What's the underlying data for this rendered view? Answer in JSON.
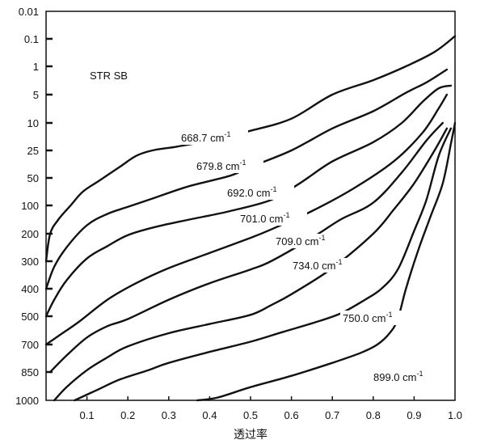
{
  "chart_data": {
    "type": "line",
    "annotation": "STR SB",
    "xlabel": "透过率",
    "ylabel": "",
    "xlim": [
      0,
      1.0
    ],
    "x_ticks": [
      "0.1",
      "0.2",
      "0.3",
      "0.4",
      "0.5",
      "0.6",
      "0.7",
      "0.8",
      "0.9",
      "1.0"
    ],
    "y_ticks": [
      "0.01",
      "0.1",
      "1",
      "5",
      "10",
      "25",
      "50",
      "100",
      "200",
      "300",
      "400",
      "500",
      "700",
      "850",
      "1000"
    ],
    "y_scale": "ordinal-tick",
    "grid": false,
    "legend": "none",
    "series": [
      {
        "label_value": "668.7",
        "label_unit": "cm",
        "label_exp": "-1",
        "points": [
          [
            0.0,
            300
          ],
          [
            0.01,
            200
          ],
          [
            0.03,
            150
          ],
          [
            0.06,
            100
          ],
          [
            0.09,
            75
          ],
          [
            0.13,
            55
          ],
          [
            0.18,
            40
          ],
          [
            0.22,
            30
          ],
          [
            0.26,
            25
          ],
          [
            0.32,
            22
          ],
          [
            0.4,
            18
          ],
          [
            0.5,
            13
          ],
          [
            0.6,
            9
          ],
          [
            0.7,
            5
          ],
          [
            0.8,
            2.2
          ],
          [
            0.88,
            1
          ],
          [
            0.95,
            0.3
          ],
          [
            1.0,
            0.08
          ]
        ]
      },
      {
        "label_value": "679.8",
        "label_unit": "cm",
        "label_exp": "-1",
        "points": [
          [
            0.0,
            400
          ],
          [
            0.02,
            320
          ],
          [
            0.05,
            250
          ],
          [
            0.1,
            170
          ],
          [
            0.15,
            130
          ],
          [
            0.2,
            105
          ],
          [
            0.27,
            85
          ],
          [
            0.35,
            65
          ],
          [
            0.45,
            48
          ],
          [
            0.5,
            40
          ],
          [
            0.6,
            25
          ],
          [
            0.7,
            12
          ],
          [
            0.8,
            7.5
          ],
          [
            0.88,
            4.5
          ],
          [
            0.93,
            2.5
          ],
          [
            0.98,
            1.2
          ]
        ]
      },
      {
        "label_value": "692.0",
        "label_unit": "cm",
        "label_exp": "-1",
        "points": [
          [
            0.0,
            500
          ],
          [
            0.02,
            440
          ],
          [
            0.05,
            370
          ],
          [
            0.1,
            290
          ],
          [
            0.15,
            245
          ],
          [
            0.2,
            205
          ],
          [
            0.27,
            175
          ],
          [
            0.35,
            150
          ],
          [
            0.45,
            120
          ],
          [
            0.55,
            90
          ],
          [
            0.62,
            60
          ],
          [
            0.7,
            35
          ],
          [
            0.8,
            19
          ],
          [
            0.87,
            10
          ],
          [
            0.92,
            6
          ],
          [
            0.96,
            3.5
          ],
          [
            0.99,
            3
          ]
        ]
      },
      {
        "label_value": "701.0",
        "label_unit": "cm",
        "label_exp": "-1",
        "points": [
          [
            0.0,
            700
          ],
          [
            0.03,
            640
          ],
          [
            0.08,
            540
          ],
          [
            0.15,
            440
          ],
          [
            0.22,
            380
          ],
          [
            0.3,
            325
          ],
          [
            0.4,
            270
          ],
          [
            0.5,
            215
          ],
          [
            0.55,
            185
          ],
          [
            0.65,
            120
          ],
          [
            0.75,
            70
          ],
          [
            0.85,
            35
          ],
          [
            0.92,
            14
          ],
          [
            0.96,
            7
          ],
          [
            0.98,
            5
          ]
        ]
      },
      {
        "label_value": "709.0",
        "label_unit": "cm",
        "label_exp": "-1",
        "points": [
          [
            0.01,
            850
          ],
          [
            0.05,
            760
          ],
          [
            0.1,
            650
          ],
          [
            0.15,
            570
          ],
          [
            0.2,
            520
          ],
          [
            0.3,
            440
          ],
          [
            0.4,
            380
          ],
          [
            0.5,
            330
          ],
          [
            0.55,
            300
          ],
          [
            0.65,
            215
          ],
          [
            0.72,
            150
          ],
          [
            0.8,
            95
          ],
          [
            0.87,
            45
          ],
          [
            0.93,
            18
          ],
          [
            0.97,
            10
          ]
        ]
      },
      {
        "label_value": "734.0",
        "label_unit": "cm",
        "label_exp": "-1",
        "points": [
          [
            0.02,
            1000
          ],
          [
            0.05,
            930
          ],
          [
            0.1,
            840
          ],
          [
            0.15,
            770
          ],
          [
            0.2,
            710
          ],
          [
            0.3,
            620
          ],
          [
            0.4,
            555
          ],
          [
            0.5,
            495
          ],
          [
            0.55,
            460
          ],
          [
            0.6,
            420
          ],
          [
            0.7,
            325
          ],
          [
            0.8,
            200
          ],
          [
            0.85,
            115
          ],
          [
            0.9,
            60
          ],
          [
            0.95,
            25
          ],
          [
            0.98,
            12
          ]
        ]
      },
      {
        "label_value": "750.0",
        "label_unit": "cm",
        "label_exp": "-1",
        "points": [
          [
            0.07,
            1000
          ],
          [
            0.12,
            950
          ],
          [
            0.18,
            890
          ],
          [
            0.25,
            840
          ],
          [
            0.3,
            800
          ],
          [
            0.4,
            740
          ],
          [
            0.5,
            680
          ],
          [
            0.58,
            610
          ],
          [
            0.65,
            550
          ],
          [
            0.72,
            490
          ],
          [
            0.78,
            440
          ],
          [
            0.82,
            400
          ],
          [
            0.86,
            330
          ],
          [
            0.9,
            190
          ],
          [
            0.93,
            90
          ],
          [
            0.96,
            30
          ],
          [
            0.99,
            12
          ]
        ]
      },
      {
        "label_value": "899.0",
        "label_unit": "cm",
        "label_exp": "-1",
        "points": [
          [
            0.37,
            1000
          ],
          [
            0.42,
            985
          ],
          [
            0.5,
            930
          ],
          [
            0.6,
            870
          ],
          [
            0.7,
            800
          ],
          [
            0.77,
            745
          ],
          [
            0.81,
            700
          ],
          [
            0.84,
            620
          ],
          [
            0.86,
            520
          ],
          [
            0.88,
            400
          ],
          [
            0.91,
            260
          ],
          [
            0.94,
            140
          ],
          [
            0.97,
            60
          ],
          [
            0.99,
            20
          ],
          [
            1.0,
            10
          ]
        ]
      }
    ]
  }
}
